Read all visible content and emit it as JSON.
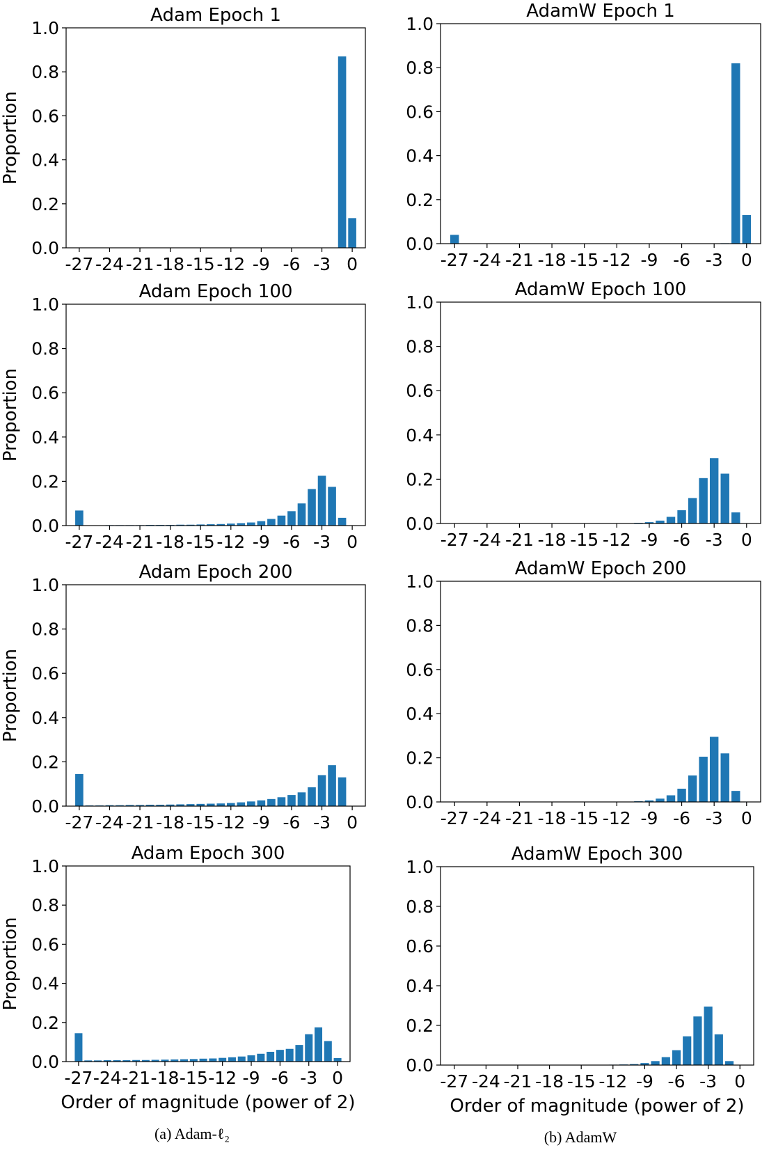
{
  "figure": {
    "caption_a": "(a) Adam-ℓ₂",
    "caption_b": "(b) AdamW",
    "bar_color": "#1f77b4",
    "x_ticks": [
      "-27",
      "-24",
      "-21",
      "-18",
      "-15",
      "-12",
      "-9",
      "-6",
      "-3",
      "0"
    ],
    "y_ticks": [
      "0.0",
      "0.2",
      "0.4",
      "0.6",
      "0.8",
      "1.0"
    ]
  },
  "chart_data": [
    {
      "type": "bar",
      "title": "Adam Epoch 1",
      "ylabel": "Proportion",
      "xlabel": "",
      "ylim": [
        0,
        1
      ],
      "xticks": [
        -27,
        -24,
        -21,
        -18,
        -15,
        -12,
        -9,
        -6,
        -3,
        0
      ],
      "x": [
        -1,
        0
      ],
      "values": [
        0.87,
        0.135
      ]
    },
    {
      "type": "bar",
      "title": "AdamW Epoch 1",
      "ylabel": "",
      "xlabel": "",
      "ylim": [
        0,
        1
      ],
      "xticks": [
        -27,
        -24,
        -21,
        -18,
        -15,
        -12,
        -9,
        -6,
        -3,
        0
      ],
      "x": [
        -27,
        -2,
        -1,
        0
      ],
      "values": [
        0.04,
        0.002,
        0.82,
        0.13
      ]
    },
    {
      "type": "bar",
      "title": "Adam Epoch 100",
      "ylabel": "Proportion",
      "xlabel": "",
      "ylim": [
        0,
        1
      ],
      "xticks": [
        -27,
        -24,
        -21,
        -18,
        -15,
        -12,
        -9,
        -6,
        -3,
        0
      ],
      "x": [
        -27,
        -26,
        -25,
        -24,
        -23,
        -22,
        -21,
        -20,
        -19,
        -18,
        -17,
        -16,
        -15,
        -14,
        -13,
        -12,
        -11,
        -10,
        -9,
        -8,
        -7,
        -6,
        -5,
        -4,
        -3,
        -2,
        -1
      ],
      "values": [
        0.068,
        0.001,
        0.001,
        0.002,
        0.002,
        0.002,
        0.002,
        0.003,
        0.003,
        0.003,
        0.004,
        0.004,
        0.005,
        0.006,
        0.007,
        0.009,
        0.011,
        0.014,
        0.02,
        0.03,
        0.045,
        0.065,
        0.1,
        0.165,
        0.225,
        0.175,
        0.035
      ]
    },
    {
      "type": "bar",
      "title": "AdamW Epoch 100",
      "ylabel": "",
      "xlabel": "",
      "ylim": [
        0,
        1
      ],
      "xticks": [
        -27,
        -24,
        -21,
        -18,
        -15,
        -12,
        -9,
        -6,
        -3,
        0
      ],
      "x": [
        -11,
        -10,
        -9,
        -8,
        -7,
        -6,
        -5,
        -4,
        -3,
        -2,
        -1
      ],
      "values": [
        0.001,
        0.003,
        0.006,
        0.013,
        0.03,
        0.06,
        0.115,
        0.205,
        0.295,
        0.225,
        0.05
      ]
    },
    {
      "type": "bar",
      "title": "Adam Epoch 200",
      "ylabel": "Proportion",
      "xlabel": "",
      "ylim": [
        0,
        1
      ],
      "xticks": [
        -27,
        -24,
        -21,
        -18,
        -15,
        -12,
        -9,
        -6,
        -3,
        0
      ],
      "x": [
        -27,
        -26,
        -25,
        -24,
        -23,
        -22,
        -21,
        -20,
        -19,
        -18,
        -17,
        -16,
        -15,
        -14,
        -13,
        -12,
        -11,
        -10,
        -9,
        -8,
        -7,
        -6,
        -5,
        -4,
        -3,
        -2,
        -1
      ],
      "values": [
        0.145,
        0.003,
        0.003,
        0.004,
        0.004,
        0.005,
        0.005,
        0.006,
        0.006,
        0.007,
        0.008,
        0.009,
        0.01,
        0.011,
        0.012,
        0.014,
        0.017,
        0.021,
        0.026,
        0.032,
        0.04,
        0.05,
        0.062,
        0.085,
        0.14,
        0.185,
        0.13
      ]
    },
    {
      "type": "bar",
      "title": "AdamW Epoch 200",
      "ylabel": "",
      "xlabel": "",
      "ylim": [
        0,
        1
      ],
      "xticks": [
        -27,
        -24,
        -21,
        -18,
        -15,
        -12,
        -9,
        -6,
        -3,
        0
      ],
      "x": [
        -11,
        -10,
        -9,
        -8,
        -7,
        -6,
        -5,
        -4,
        -3,
        -2,
        -1
      ],
      "values": [
        0.001,
        0.003,
        0.007,
        0.015,
        0.03,
        0.06,
        0.12,
        0.205,
        0.295,
        0.22,
        0.05
      ]
    },
    {
      "type": "bar",
      "title": "Adam Epoch 300",
      "ylabel": "Proportion",
      "xlabel": "Order of magnitude (power of 2)",
      "ylim": [
        0,
        1
      ],
      "xticks": [
        -27,
        -24,
        -21,
        -18,
        -15,
        -12,
        -9,
        -6,
        -3,
        0
      ],
      "x": [
        -27,
        -26,
        -25,
        -24,
        -23,
        -22,
        -21,
        -20,
        -19,
        -18,
        -17,
        -16,
        -15,
        -14,
        -13,
        -12,
        -11,
        -10,
        -9,
        -8,
        -7,
        -6,
        -5,
        -4,
        -3,
        -2,
        -1,
        0
      ],
      "values": [
        0.145,
        0.006,
        0.006,
        0.007,
        0.007,
        0.007,
        0.008,
        0.008,
        0.009,
        0.01,
        0.011,
        0.012,
        0.013,
        0.015,
        0.016,
        0.019,
        0.022,
        0.026,
        0.032,
        0.04,
        0.05,
        0.06,
        0.065,
        0.085,
        0.14,
        0.175,
        0.105,
        0.018
      ]
    },
    {
      "type": "bar",
      "title": "AdamW Epoch 300",
      "ylabel": "",
      "xlabel": "Order of magnitude (power of 2)",
      "ylim": [
        0,
        1
      ],
      "xticks": [
        -27,
        -24,
        -21,
        -18,
        -15,
        -12,
        -9,
        -6,
        -3,
        0
      ],
      "x": [
        -13,
        -12,
        -11,
        -10,
        -9,
        -8,
        -7,
        -6,
        -5,
        -4,
        -3,
        -2,
        -1
      ],
      "values": [
        0.001,
        0.002,
        0.003,
        0.005,
        0.01,
        0.02,
        0.04,
        0.075,
        0.145,
        0.245,
        0.295,
        0.155,
        0.02
      ]
    }
  ]
}
